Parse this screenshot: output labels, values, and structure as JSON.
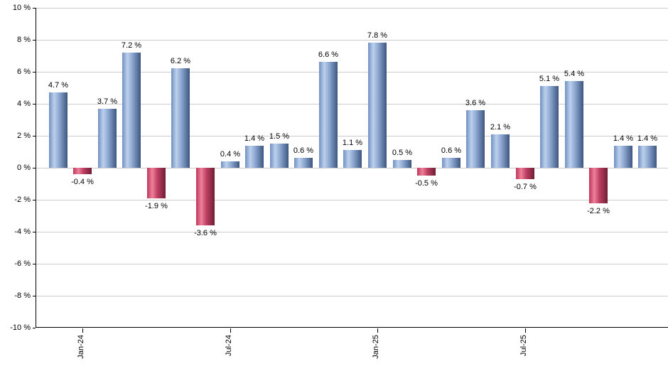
{
  "chart_data": {
    "type": "bar",
    "title": "",
    "xlabel": "",
    "ylabel": "",
    "unit": "%",
    "bar_count": 25,
    "values": [
      4.7,
      -0.4,
      3.7,
      7.2,
      -1.9,
      6.2,
      -3.6,
      0.4,
      1.4,
      1.5,
      0.6,
      6.6,
      1.1,
      7.8,
      0.5,
      -0.5,
      0.6,
      3.6,
      2.1,
      -0.7,
      5.1,
      5.4,
      -2.2,
      1.4,
      1.4
    ],
    "bar_labels": [
      "4.7 %",
      "-0.4 %",
      "3.7 %",
      "7.2 %",
      "-1.9 %",
      "6.2 %",
      "-3.6 %",
      "0.4 %",
      "1.4 %",
      "1.5 %",
      "0.6 %",
      "6.6 %",
      "1.1 %",
      "7.8 %",
      "0.5 %",
      "-0.5 %",
      "0.6 %",
      "3.6 %",
      "2.1 %",
      "-0.7 %",
      "5.1 %",
      "5.4 %",
      "-2.2 %",
      "1.4 %",
      "1.4 %"
    ],
    "y_axis": {
      "min": -10,
      "max": 10,
      "tick_interval": 2,
      "tick_labels": [
        "10 %",
        "8 %",
        "6 %",
        "4 %",
        "2 %",
        "0 %",
        "-2 %",
        "-4 %",
        "-6 %",
        "-8 %",
        "-10 %"
      ]
    },
    "x_ticks": [
      {
        "label": "Jan-24",
        "bar_index": 1
      },
      {
        "label": "Jul-24",
        "bar_index": 7
      },
      {
        "label": "Jan-25",
        "bar_index": 13
      },
      {
        "label": "Jul-25",
        "bar_index": 19
      }
    ],
    "legend": null,
    "grid": true,
    "colors": {
      "positive_gradient": "linear-gradient(90deg, #7090c2 0%, #bdd0ec 28%, #8ba6d0 55%, #3c567f 100%)",
      "negative_gradient": "linear-gradient(90deg, #c23458 0%, #ec829c 28%, #c04064 55%, #6f1e34 100%)",
      "gridline": "#cccccc",
      "axis": "#000000",
      "label_text": "#000000"
    }
  }
}
